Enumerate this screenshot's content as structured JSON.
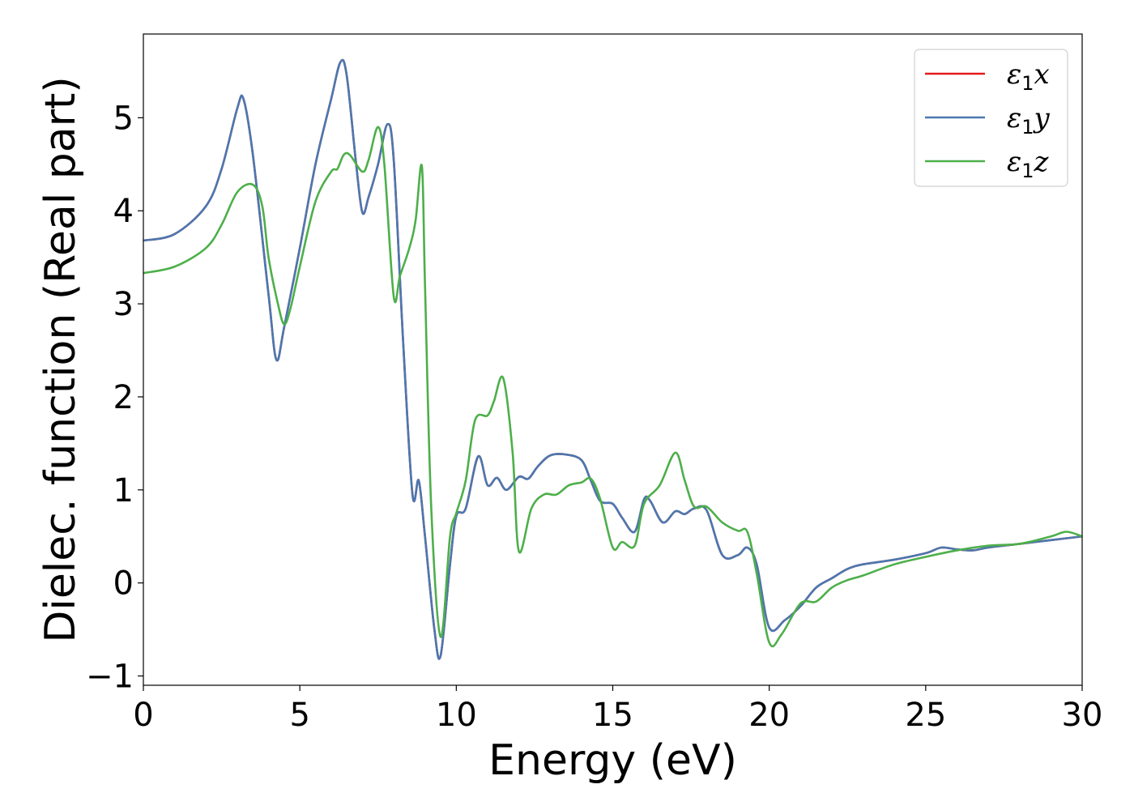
{
  "chart_data": {
    "type": "line",
    "xlabel": "Energy (eV)",
    "ylabel": "Dielec. function (Real part)",
    "xlim": [
      0,
      30
    ],
    "ylim": [
      -1.1,
      5.9
    ],
    "xticks": [
      0,
      5,
      10,
      15,
      20,
      25,
      30
    ],
    "xtick_labels": [
      "0",
      "5",
      "10",
      "15",
      "20",
      "25",
      "30"
    ],
    "yticks": [
      -1,
      0,
      1,
      2,
      3,
      4,
      5
    ],
    "ytick_labels": [
      "−1",
      "0",
      "1",
      "2",
      "3",
      "4",
      "5"
    ],
    "grid": false,
    "legend_position": "top-right",
    "series": [
      {
        "name": "ε1x",
        "legend_symbol": "ε",
        "legend_sub": "1",
        "legend_var": "x",
        "color": "#e41a1c",
        "x": [
          0,
          1,
          2,
          2.5,
          3,
          3.2,
          3.5,
          4,
          4.25,
          4.5,
          5,
          5.5,
          6,
          6.3,
          6.5,
          6.8,
          7,
          7.2,
          7.5,
          7.8,
          8,
          8.3,
          8.6,
          8.8,
          9,
          9.3,
          9.5,
          9.8,
          10,
          10.3,
          10.7,
          11,
          11.3,
          11.6,
          12,
          12.3,
          12.6,
          13,
          13.5,
          14,
          14.3,
          14.6,
          15,
          15.3,
          15.7,
          16,
          16.2,
          16.6,
          17,
          17.3,
          17.6,
          18,
          18.5,
          19,
          19.3,
          19.6,
          20,
          20.5,
          21,
          21.5,
          22,
          22.5,
          23,
          24,
          25,
          25.5,
          26,
          26.5,
          27,
          28,
          29,
          30
        ],
        "values": [
          3.68,
          3.75,
          4.05,
          4.45,
          5.1,
          5.2,
          4.6,
          3.1,
          2.4,
          2.75,
          3.6,
          4.5,
          5.2,
          5.6,
          5.45,
          4.5,
          3.98,
          4.15,
          4.5,
          4.93,
          4.55,
          2.6,
          0.95,
          1.1,
          0.5,
          -0.5,
          -0.78,
          0.2,
          0.72,
          0.8,
          1.36,
          1.05,
          1.13,
          1.0,
          1.14,
          1.12,
          1.25,
          1.37,
          1.38,
          1.32,
          1.1,
          0.88,
          0.85,
          0.7,
          0.55,
          0.9,
          0.88,
          0.65,
          0.77,
          0.74,
          0.8,
          0.78,
          0.3,
          0.3,
          0.38,
          0.2,
          -0.48,
          -0.4,
          -0.25,
          -0.05,
          0.05,
          0.15,
          0.2,
          0.25,
          0.32,
          0.38,
          0.36,
          0.35,
          0.38,
          0.42,
          0.46,
          0.5
        ]
      },
      {
        "name": "ε1y",
        "legend_symbol": "ε",
        "legend_sub": "1",
        "legend_var": "y",
        "color": "#4a78b0",
        "x": [
          0,
          1,
          2,
          2.5,
          3,
          3.2,
          3.5,
          4,
          4.25,
          4.5,
          5,
          5.5,
          6,
          6.3,
          6.5,
          6.8,
          7,
          7.2,
          7.5,
          7.8,
          8,
          8.3,
          8.6,
          8.8,
          9,
          9.3,
          9.5,
          9.8,
          10,
          10.3,
          10.7,
          11,
          11.3,
          11.6,
          12,
          12.3,
          12.6,
          13,
          13.5,
          14,
          14.3,
          14.6,
          15,
          15.3,
          15.7,
          16,
          16.2,
          16.6,
          17,
          17.3,
          17.6,
          18,
          18.5,
          19,
          19.3,
          19.6,
          20,
          20.5,
          21,
          21.5,
          22,
          22.5,
          23,
          24,
          25,
          25.5,
          26,
          26.5,
          27,
          28,
          29,
          30
        ],
        "values": [
          3.68,
          3.75,
          4.05,
          4.45,
          5.1,
          5.2,
          4.6,
          3.1,
          2.4,
          2.75,
          3.6,
          4.5,
          5.2,
          5.6,
          5.45,
          4.5,
          3.98,
          4.15,
          4.5,
          4.93,
          4.55,
          2.6,
          0.95,
          1.1,
          0.5,
          -0.5,
          -0.78,
          0.2,
          0.72,
          0.8,
          1.36,
          1.05,
          1.13,
          1.0,
          1.14,
          1.12,
          1.25,
          1.37,
          1.38,
          1.32,
          1.1,
          0.88,
          0.85,
          0.7,
          0.55,
          0.9,
          0.88,
          0.65,
          0.77,
          0.74,
          0.8,
          0.78,
          0.3,
          0.3,
          0.38,
          0.2,
          -0.48,
          -0.4,
          -0.25,
          -0.05,
          0.05,
          0.15,
          0.2,
          0.25,
          0.32,
          0.38,
          0.36,
          0.35,
          0.38,
          0.42,
          0.46,
          0.5
        ]
      },
      {
        "name": "ε1z",
        "legend_symbol": "ε",
        "legend_sub": "1",
        "legend_var": "z",
        "color": "#4daf4a",
        "x": [
          0,
          1,
          2,
          2.5,
          3,
          3.5,
          3.8,
          4,
          4.3,
          4.5,
          4.7,
          5,
          5.5,
          6,
          6.2,
          6.4,
          6.6,
          7,
          7.2,
          7.5,
          7.7,
          8,
          8.2,
          8.5,
          8.7,
          8.9,
          9,
          9.2,
          9.5,
          9.8,
          10,
          10.3,
          10.6,
          11,
          11.2,
          11.5,
          11.8,
          12,
          12.4,
          12.8,
          13.2,
          13.6,
          14,
          14.3,
          14.6,
          15,
          15.3,
          15.7,
          16,
          16.5,
          17,
          17.3,
          17.6,
          18,
          18.5,
          19,
          19.3,
          19.6,
          20,
          20.4,
          21,
          21.5,
          22,
          22.5,
          23,
          24,
          25,
          26,
          27,
          28,
          29,
          29.5,
          30
        ],
        "values": [
          3.33,
          3.4,
          3.6,
          3.85,
          4.2,
          4.28,
          4.05,
          3.5,
          3.0,
          2.78,
          2.95,
          3.4,
          4.1,
          4.42,
          4.45,
          4.6,
          4.6,
          4.42,
          4.55,
          4.9,
          4.5,
          3.08,
          3.3,
          3.6,
          3.9,
          4.48,
          3.2,
          0.8,
          -0.58,
          0.5,
          0.75,
          1.1,
          1.75,
          1.8,
          1.95,
          2.2,
          1.4,
          0.34,
          0.8,
          0.95,
          0.95,
          1.05,
          1.08,
          1.12,
          0.9,
          0.38,
          0.44,
          0.4,
          0.85,
          1.05,
          1.4,
          1.1,
          0.82,
          0.82,
          0.65,
          0.56,
          0.55,
          0.1,
          -0.64,
          -0.55,
          -0.22,
          -0.2,
          -0.05,
          0.03,
          0.08,
          0.2,
          0.28,
          0.35,
          0.4,
          0.42,
          0.5,
          0.55,
          0.5
        ]
      }
    ]
  }
}
